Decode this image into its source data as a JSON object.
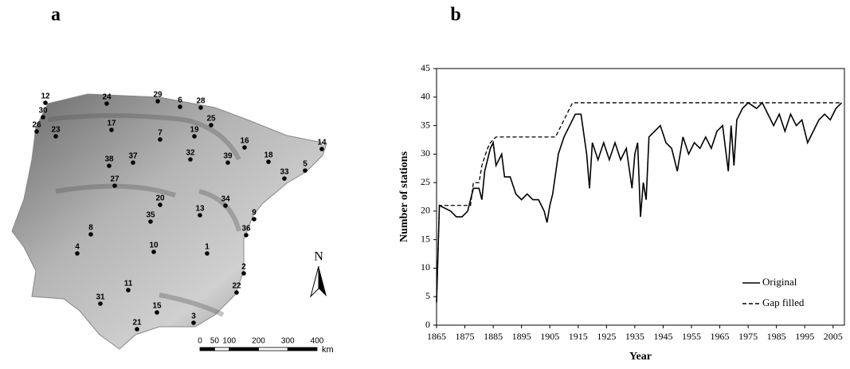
{
  "panel_labels": [
    "a",
    "b"
  ],
  "map": {
    "stations": [
      "1",
      "2",
      "3",
      "4",
      "5",
      "6",
      "7",
      "8",
      "9",
      "10",
      "11",
      "12",
      "13",
      "14",
      "15",
      "16",
      "17",
      "18",
      "19",
      "20",
      "21",
      "22",
      "23",
      "24",
      "25",
      "26",
      "27",
      "28",
      "29",
      "30",
      "31",
      "32",
      "33",
      "34",
      "35",
      "36",
      "37",
      "38",
      "39"
    ],
    "north": "N",
    "scale_ticks": [
      0,
      50,
      100,
      200,
      300,
      400
    ],
    "scale_unit": "km"
  },
  "chart_data": {
    "type": "line",
    "xlabel": "Year",
    "ylabel": "Number of stations",
    "xlim": [
      1865,
      2009
    ],
    "ylim": [
      0,
      45
    ],
    "xticks": [
      1865,
      1875,
      1885,
      1895,
      1905,
      1915,
      1925,
      1935,
      1945,
      1955,
      1965,
      1975,
      1985,
      1995,
      2005
    ],
    "yticks": [
      0,
      5,
      10,
      15,
      20,
      25,
      30,
      35,
      40,
      45
    ],
    "legend": "lower right",
    "series": [
      {
        "name": "Original",
        "color": "#000000",
        "dashed": false,
        "x": [
          1865,
          1866,
          1870,
          1872,
          1874,
          1876,
          1878,
          1880,
          1881,
          1882,
          1884,
          1885,
          1886,
          1888,
          1889,
          1891,
          1893,
          1895,
          1897,
          1899,
          1901,
          1903,
          1904,
          1905,
          1906,
          1908,
          1910,
          1912,
          1914,
          1916,
          1918,
          1919,
          1920,
          1922,
          1924,
          1926,
          1928,
          1930,
          1932,
          1934,
          1935,
          1936,
          1937,
          1938,
          1939,
          1940,
          1942,
          1944,
          1946,
          1948,
          1950,
          1952,
          1954,
          1956,
          1958,
          1960,
          1962,
          1964,
          1966,
          1968,
          1969,
          1970,
          1971,
          1973,
          1975,
          1978,
          1980,
          1982,
          1984,
          1986,
          1988,
          1990,
          1992,
          1994,
          1996,
          1998,
          2000,
          2002,
          2004,
          2006,
          2008
        ],
        "values": [
          4,
          21,
          20,
          19,
          19,
          20,
          24,
          24,
          22,
          27,
          31,
          32,
          28,
          30,
          26,
          26,
          23,
          22,
          23,
          22,
          22,
          20,
          18,
          21,
          23,
          30,
          33,
          35,
          37,
          37,
          30,
          24,
          32,
          29,
          32,
          29,
          32,
          29,
          31,
          24,
          30,
          32,
          19,
          25,
          22,
          33,
          34,
          35,
          32,
          31,
          27,
          33,
          30,
          32,
          31,
          33,
          31,
          34,
          35,
          27,
          35,
          28,
          36,
          38,
          39,
          38,
          39,
          37,
          35,
          37,
          34,
          37,
          35,
          36,
          32,
          34,
          36,
          37,
          36,
          38,
          39
        ]
      },
      {
        "name": "Gap filled",
        "color": "#000000",
        "dashed": true,
        "x": [
          1865,
          1866,
          1877,
          1878,
          1880,
          1881,
          1883,
          1884,
          1886,
          1907,
          1909,
          1911,
          1913,
          2008
        ],
        "values": [
          4,
          21,
          21,
          25,
          25,
          28,
          31,
          32,
          33,
          33,
          35,
          37,
          39,
          39
        ]
      }
    ]
  }
}
